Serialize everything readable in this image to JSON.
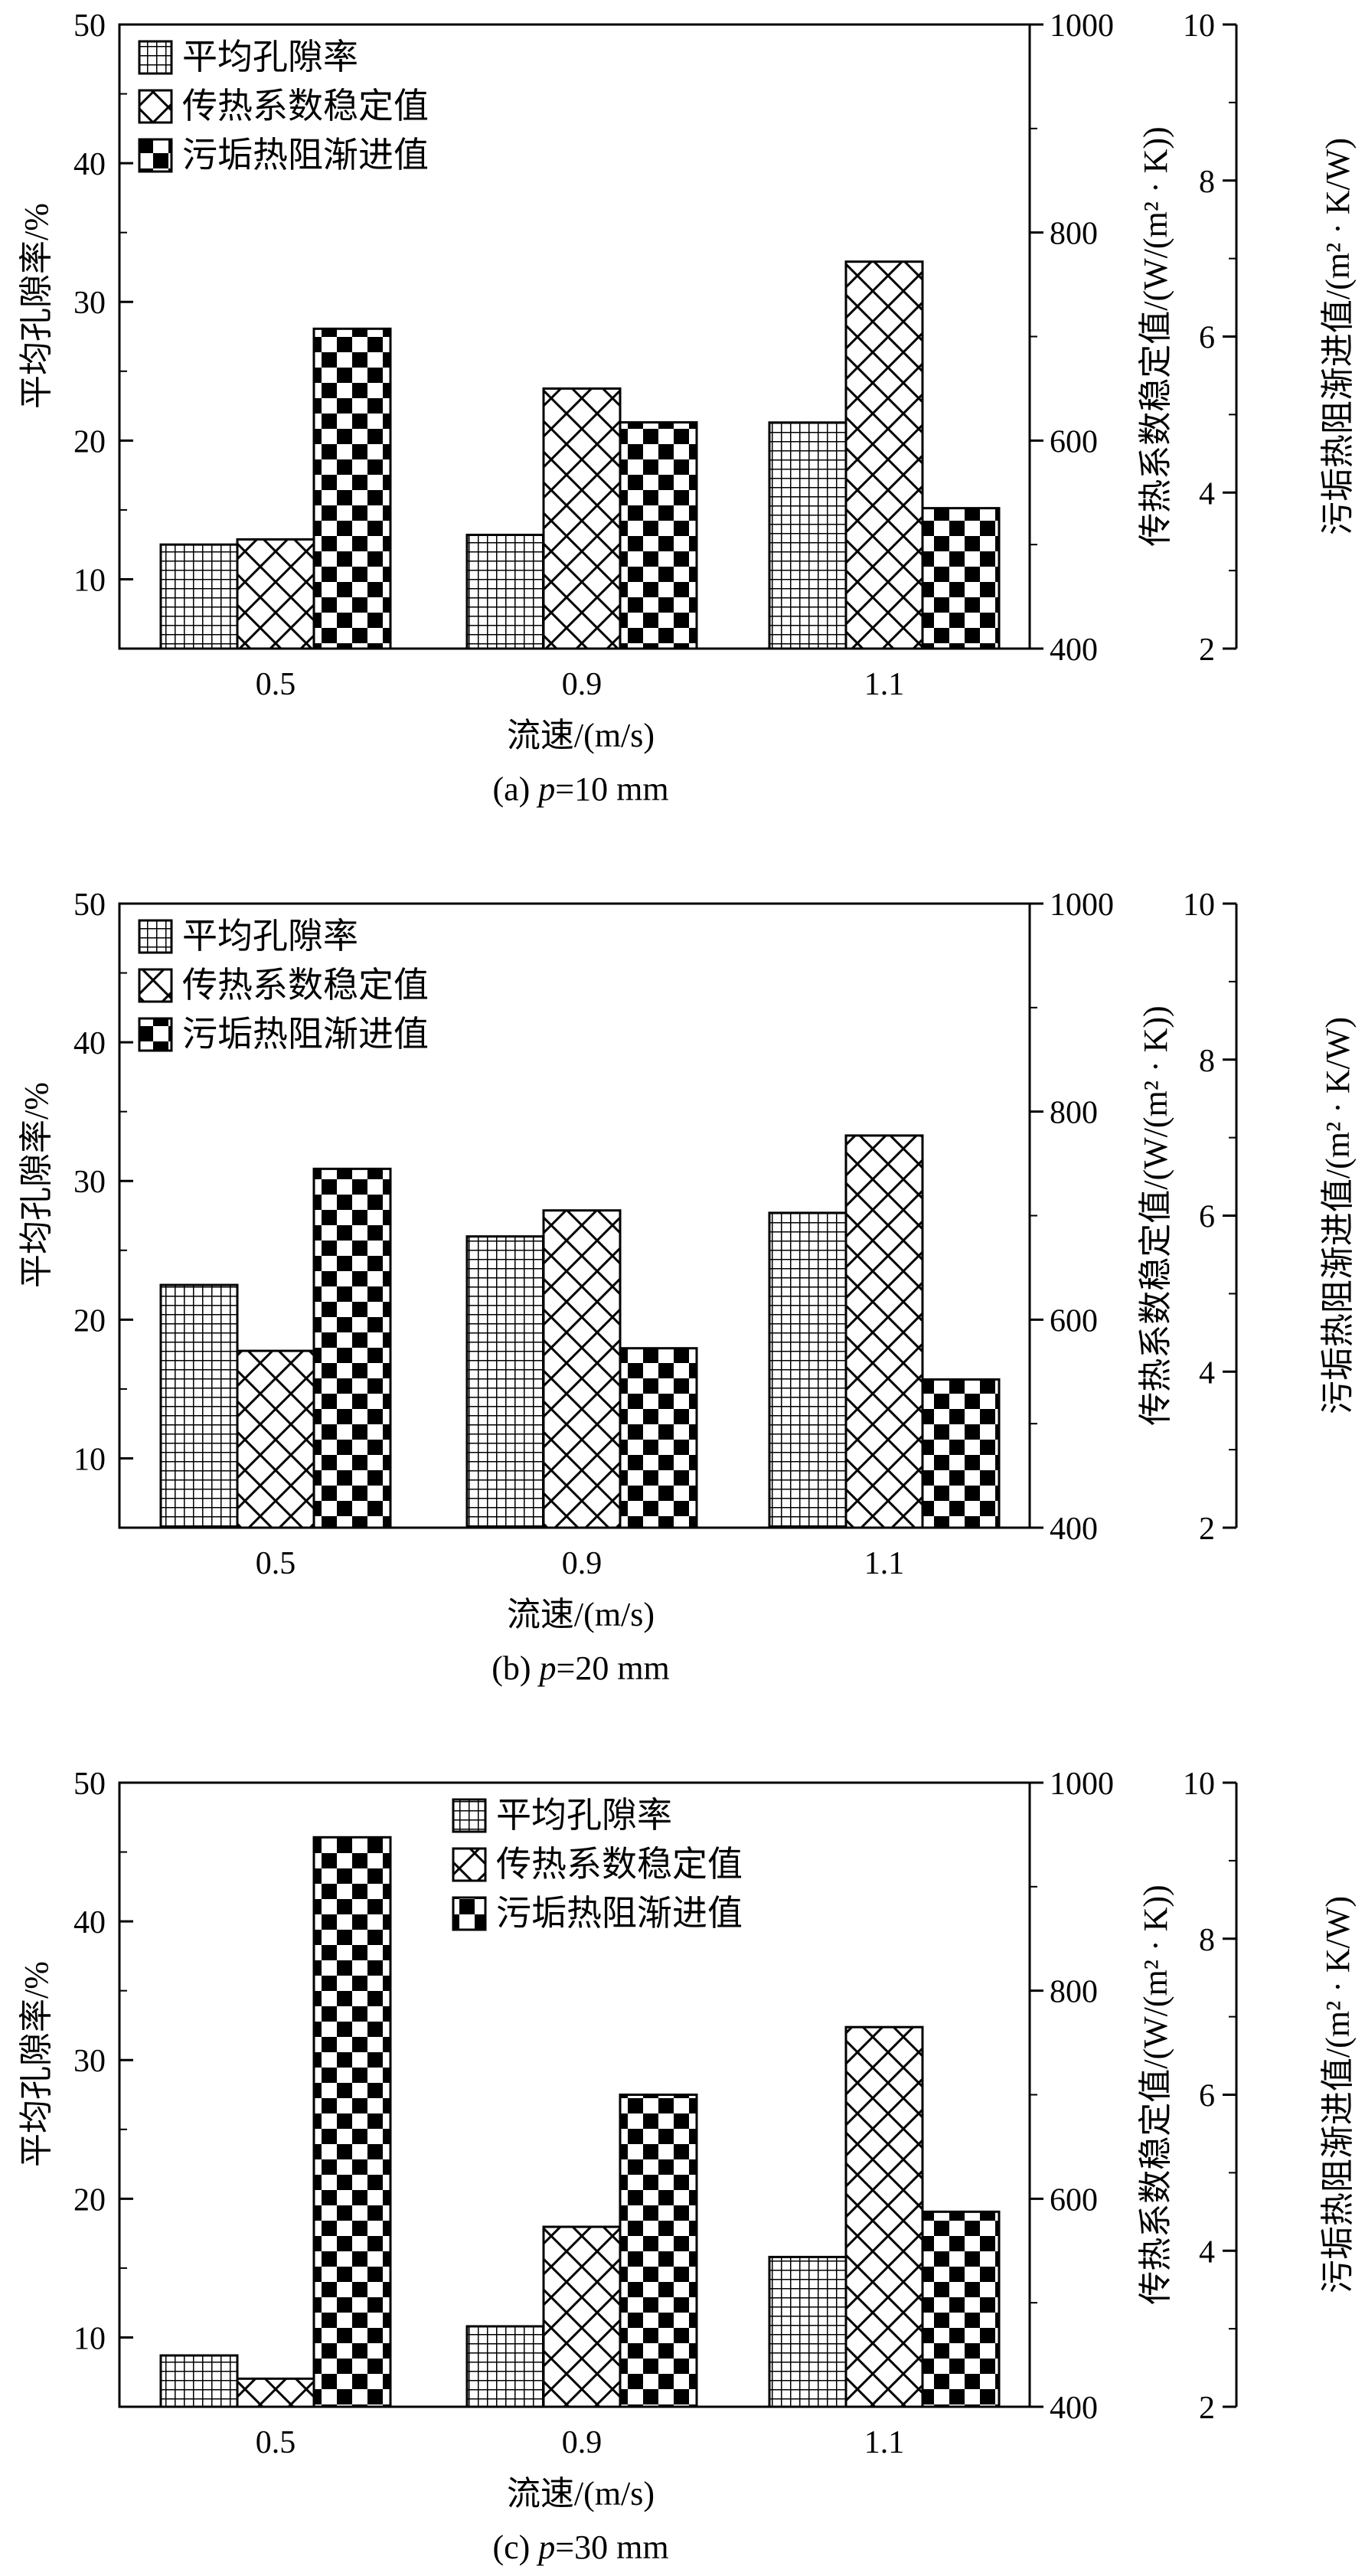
{
  "figure": {
    "xlabel": "流速/(m/s)",
    "ylabel_left": "平均孔隙率/%",
    "ylabel_mid": "传热系数稳定值/(W/(m² · K))",
    "ylabel_right": "污垢热阻渐进值/(m² · K/W)",
    "legend": [
      "平均孔隙率",
      "传热系数稳定值",
      "污垢热阻渐进值"
    ]
  },
  "chart_data": [
    {
      "type": "bar",
      "caption_prefix": "(a) ",
      "caption_var": "p",
      "caption_suffix": "=10 mm",
      "categories": [
        "0.5",
        "0.9",
        "1.1"
      ],
      "series": [
        {
          "name": "平均孔隙率",
          "axis": "left",
          "values": [
            12.5,
            13.2,
            21.3
          ]
        },
        {
          "name": "传热系数稳定值",
          "axis": "mid",
          "values": [
            505,
            650,
            772
          ]
        },
        {
          "name": "污垢热阻渐进值",
          "axis": "right",
          "values": [
            6.1,
            4.9,
            3.8
          ]
        }
      ],
      "axes": {
        "left": {
          "min": 5,
          "max": 50,
          "ticks": [
            10,
            20,
            30,
            40,
            50
          ]
        },
        "mid": {
          "min": 400,
          "max": 1000,
          "ticks": [
            400,
            600,
            800,
            1000
          ]
        },
        "right": {
          "min": 2,
          "max": 10,
          "ticks": [
            2,
            4,
            6,
            8,
            10
          ]
        }
      },
      "legend_position": "top-left"
    },
    {
      "type": "bar",
      "caption_prefix": "(b) ",
      "caption_var": "p",
      "caption_suffix": "=20 mm",
      "categories": [
        "0.5",
        "0.9",
        "1.1"
      ],
      "series": [
        {
          "name": "平均孔隙率",
          "axis": "left",
          "values": [
            22.5,
            26.0,
            27.7
          ]
        },
        {
          "name": "传热系数稳定值",
          "axis": "mid",
          "values": [
            570,
            705,
            777
          ]
        },
        {
          "name": "污垢热阻渐进值",
          "axis": "right",
          "values": [
            6.6,
            4.3,
            3.9
          ]
        }
      ],
      "axes": {
        "left": {
          "min": 5,
          "max": 50,
          "ticks": [
            10,
            20,
            30,
            40,
            50
          ]
        },
        "mid": {
          "min": 400,
          "max": 1000,
          "ticks": [
            400,
            600,
            800,
            1000
          ]
        },
        "right": {
          "min": 2,
          "max": 10,
          "ticks": [
            2,
            4,
            6,
            8,
            10
          ]
        }
      },
      "legend_position": "top-left"
    },
    {
      "type": "bar",
      "caption_prefix": "(c) ",
      "caption_var": "p",
      "caption_suffix": "=30 mm",
      "categories": [
        "0.5",
        "0.9",
        "1.1"
      ],
      "series": [
        {
          "name": "平均孔隙率",
          "axis": "left",
          "values": [
            8.7,
            10.8,
            15.8
          ]
        },
        {
          "name": "传热系数稳定值",
          "axis": "mid",
          "values": [
            427,
            573,
            765
          ]
        },
        {
          "name": "污垢热阻渐进值",
          "axis": "right",
          "values": [
            9.3,
            6.0,
            4.5
          ]
        }
      ],
      "axes": {
        "left": {
          "min": 5,
          "max": 50,
          "ticks": [
            10,
            20,
            30,
            40,
            50
          ]
        },
        "mid": {
          "min": 400,
          "max": 1000,
          "ticks": [
            400,
            600,
            800,
            1000
          ]
        },
        "right": {
          "min": 2,
          "max": 10,
          "ticks": [
            2,
            4,
            6,
            8,
            10
          ]
        }
      },
      "legend_position": "top-center"
    }
  ]
}
